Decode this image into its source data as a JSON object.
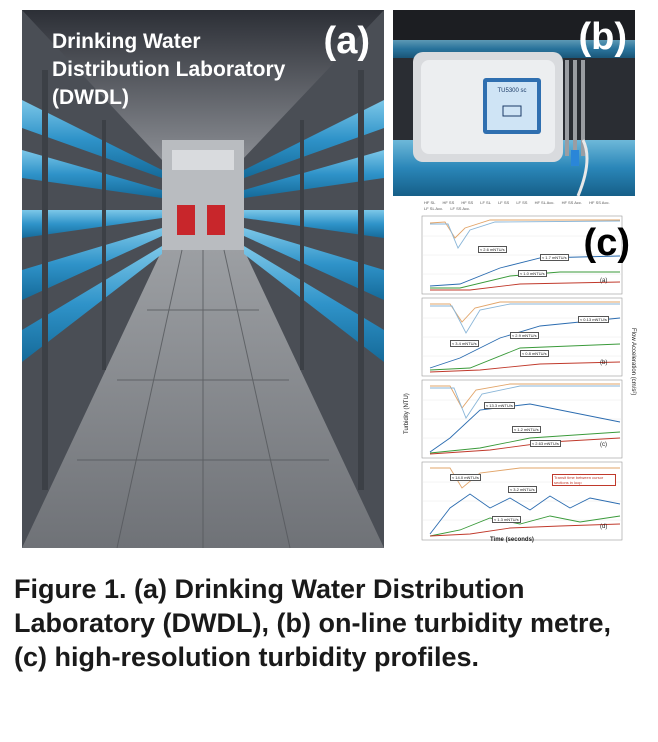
{
  "photo_a": {
    "title": "Drinking Water Distribution Laboratory (DWDL)",
    "panel_label": "(a)"
  },
  "photo_b": {
    "panel_label": "(b)",
    "device_name": "TU5300 sc"
  },
  "panel_c": {
    "panel_label": "(c)",
    "legend": [
      "HF SL",
      "HF SS",
      "HF SS",
      "LF SL",
      "LF SS",
      "LF SS",
      "HF SL Acc.",
      "HF SS Acc.",
      "HF SS Acc.",
      "LF SL Acc.",
      "LF SS Acc."
    ],
    "y_left_label": "Turbidity (NTU)",
    "y_right_label": "Flow Acceleration (cm/s²)",
    "x_label": "Time (seconds)",
    "sub_labels": [
      "(a)",
      "(b)",
      "(c)",
      "(d)"
    ],
    "annotations": {
      "a": [
        "≈ 2.6 mNTU/s",
        "≈ 1.7 mNTU/s",
        "≈ 1.0 mNTU/s"
      ],
      "b": [
        "≈ 3.4 mNTU/s",
        "≈ 2.9 mNTU/s",
        "≈ 0.13 mNTU/s",
        "≈ 0.8 mNTU/s"
      ],
      "c": [
        "≈ 13.3 mNTU/s",
        "≈ 1.2 mNTU/s",
        "≈ 2.63 mNTU/s"
      ],
      "d": [
        "≈ 14.0 mNTU/s",
        "≈ 3.2 mNTU/s",
        "≈ 1.3 mNTU/s",
        "Transit time between cursor sections in loop"
      ]
    }
  },
  "caption": "Figure 1. (a) Drinking Water Distribution Laboratory (DWDL), (b) on-line turbidity metre, (c) high-resolution turbidity profiles."
}
